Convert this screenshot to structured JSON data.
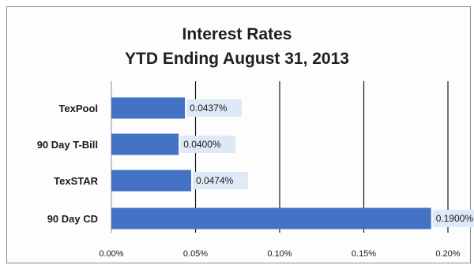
{
  "chart_data": {
    "type": "bar",
    "orientation": "horizontal",
    "title": "Interest Rates",
    "subtitle": "YTD Ending August 31, 2013",
    "categories": [
      "TexPool",
      "90 Day T-Bill",
      "TexSTAR",
      "90 Day CD"
    ],
    "values": [
      0.0437,
      0.04,
      0.0474,
      0.19
    ],
    "data_labels": [
      "0.0437%",
      "0.0400%",
      "0.0474%",
      "0.1900%"
    ],
    "xlim": [
      0,
      0.2
    ],
    "xticks": [
      0,
      0.05,
      0.1,
      0.15,
      0.2
    ],
    "xtick_labels": [
      "0.00%",
      "0.05%",
      "0.10%",
      "0.15%",
      "0.20%"
    ],
    "xlabel": "",
    "ylabel": "",
    "grid": "vertical",
    "legend": "none",
    "bar_color": "#4472c4",
    "label_background": "#dde9f6",
    "gridline_color": "#1a1a1a"
  }
}
